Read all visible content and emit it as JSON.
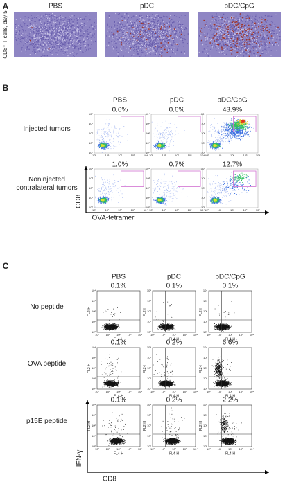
{
  "panel_a": {
    "label": "A",
    "y_label": "CD8⁺ T cells, day 5",
    "columns": [
      "PBS",
      "pDC",
      "pDC/CpG"
    ]
  },
  "panel_b": {
    "label": "B",
    "columns": [
      "PBS",
      "pDC",
      "pDC/CpG"
    ],
    "rows": [
      {
        "label": "Injected tumors",
        "percents": [
          "0.6%",
          "0.6%",
          "43.9%"
        ]
      },
      {
        "label": "Noninjected contralateral tumors",
        "percents": [
          "1.0%",
          "0.7%",
          "12.7%"
        ]
      }
    ],
    "y_axis": "CD8",
    "x_axis": "OVA-tetramer",
    "tick_labels": [
      "10⁰",
      "10¹",
      "10²",
      "10³",
      "10⁴"
    ]
  },
  "panel_c": {
    "label": "C",
    "columns": [
      "PBS",
      "pDC",
      "pDC/CpG"
    ],
    "rows": [
      {
        "label": "No peptide",
        "percents": [
          "0.1%",
          "0.1%",
          "0.1%"
        ]
      },
      {
        "label": "OVA peptide",
        "percents": [
          "0.1%",
          "0.2%",
          "6.6%"
        ]
      },
      {
        "label": "p15E peptide",
        "percents": [
          "0.1%",
          "0.2%",
          "2.2%"
        ]
      }
    ],
    "y_axis": "IFN-γ",
    "x_axis": "CD8",
    "plot_y_label": "FL2-H",
    "plot_x_label": "FL4-H",
    "tick_labels": [
      "10⁰",
      "10¹",
      "10²",
      "10³",
      "10⁴"
    ]
  }
}
